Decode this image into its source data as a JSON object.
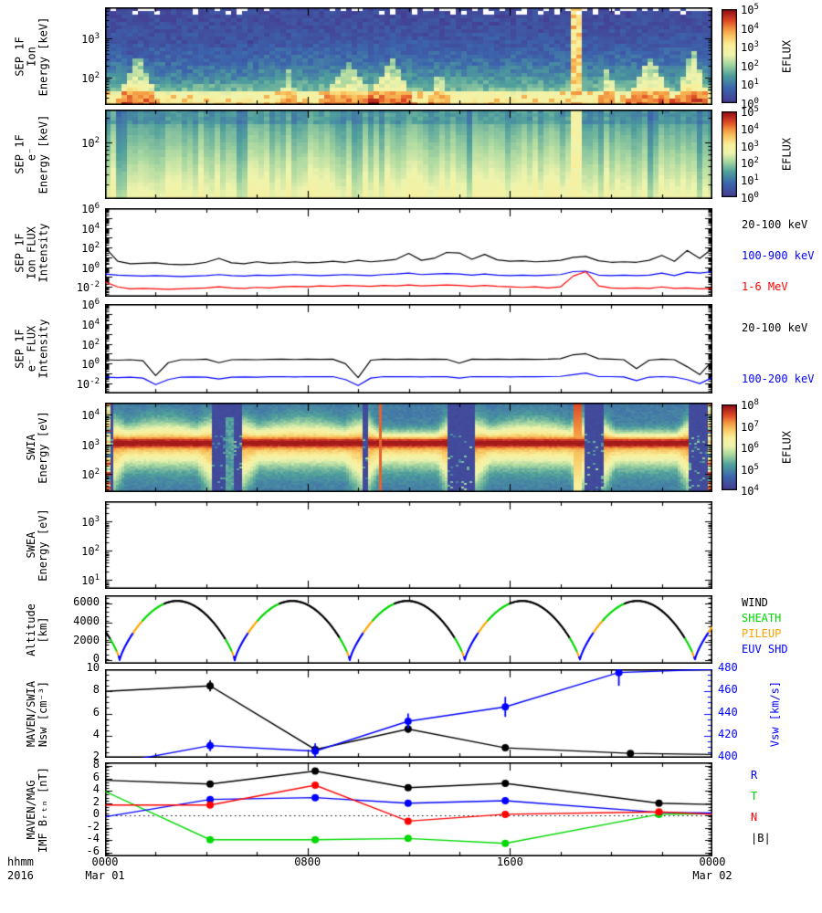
{
  "meta": {
    "background": "#ffffff",
    "foreground": "#000000"
  },
  "colors": {
    "black": "#000000",
    "blue": "#0000ff",
    "red": "#ff0000",
    "green": "#00d800",
    "orange": "#ffa500",
    "wind": "#000000",
    "sheath": "#00d800",
    "pileup": "#ffa500",
    "euv_shd": "#0000ff"
  },
  "colormap": [
    [
      0.0,
      "#46398f"
    ],
    [
      0.16,
      "#3c64ad"
    ],
    [
      0.3,
      "#4f9f9c"
    ],
    [
      0.42,
      "#a8d7a0"
    ],
    [
      0.52,
      "#eef4ad"
    ],
    [
      0.62,
      "#f9ef9c"
    ],
    [
      0.72,
      "#f8c55e"
    ],
    [
      0.8,
      "#f2903d"
    ],
    [
      0.88,
      "#df4727"
    ],
    [
      1.0,
      "#8f0b17"
    ]
  ],
  "xaxis": {
    "unit_label": "hhmm",
    "year_label": "2016",
    "ticks": [
      {
        "pos": 0.0,
        "time": "0000",
        "date": "Mar 01"
      },
      {
        "pos": 0.3333,
        "time": "0800",
        "date": ""
      },
      {
        "pos": 0.6667,
        "time": "1600",
        "date": ""
      },
      {
        "pos": 1.0,
        "time": "0000",
        "date": "Mar 02"
      }
    ],
    "minor_step_hours": 2,
    "major_step_hours": 8,
    "span_hours": 24
  },
  "chart_data": [
    {
      "id": "p1",
      "type": "heatmap",
      "title": "SEP 1F Ion energy spectrogram",
      "ylabel_lines": [
        "SEP 1F",
        "Ion",
        "Energy [keV]"
      ],
      "yrange_log": [
        1.3,
        3.8
      ],
      "ydecades": [
        2,
        3
      ],
      "colorbar": {
        "label": "EFLUX",
        "decades": [
          0,
          1,
          2,
          3,
          4,
          5
        ]
      },
      "heatmap": {
        "kind": "sep_ion",
        "cell": [
          6,
          4
        ],
        "base_top": 0.07,
        "base_gain": 0.4,
        "noise": 0.1,
        "bottom_boost": 0.16,
        "wedges": [
          [
            0.05,
            0.035,
            0.55,
            0.28
          ],
          [
            0.3,
            0.02,
            0.35,
            0.18
          ],
          [
            0.4,
            0.05,
            0.45,
            0.22
          ],
          [
            0.47,
            0.04,
            0.5,
            0.25
          ],
          [
            0.55,
            0.02,
            0.35,
            0.2
          ],
          [
            0.83,
            0.015,
            0.45,
            0.25
          ],
          [
            0.9,
            0.04,
            0.5,
            0.28
          ],
          [
            0.97,
            0.03,
            0.6,
            0.3
          ]
        ],
        "event_col": [
          0.779,
          0.008
        ],
        "dark_patch": [
          0.03,
          0.25,
          0.3,
          0.8
        ],
        "missing_row_prob": [
          0.33,
          0.1
        ],
        "missing_extra_right": 0.18
      }
    },
    {
      "id": "p2",
      "type": "heatmap",
      "title": "SEP 1F electron energy spectrogram",
      "ylabel_lines": [
        "SEP 1F",
        "e⁻",
        "Energy [keV]"
      ],
      "yrange_log": [
        1.3,
        2.4
      ],
      "ydecades": [
        2
      ],
      "colorbar": {
        "label": "EFLUX",
        "decades": [
          0,
          1,
          2,
          3,
          4,
          5
        ]
      },
      "heatmap": {
        "kind": "sep_e",
        "cell": [
          6,
          4
        ],
        "top_band": 0.15,
        "top_val": 0.28,
        "grad_lo": 0.33,
        "grad_hi": 0.56,
        "col_noise": 0.05,
        "noise": 0.02,
        "dark_stripes": [
          [
            0.023,
            0.01,
            0.55
          ],
          [
            0.221,
            0.008,
            0.5
          ],
          [
            0.414,
            0.009,
            0.5
          ],
          [
            0.597,
            0.008,
            0.45
          ],
          [
            0.82,
            0.006,
            0.35
          ],
          [
            0.902,
            0.009,
            0.5
          ],
          [
            0.982,
            0.006,
            0.35
          ]
        ],
        "bright_stripe": [
          0.779,
          0.009
        ]
      }
    },
    {
      "id": "p3",
      "type": "line-log",
      "title": "SEP 1F Ion flux intensity",
      "ylabel_lines": [
        "SEP 1F",
        "Ion FLUX",
        "Intensity"
      ],
      "yrange_log": [
        -3,
        6
      ],
      "ydecades": [
        -2,
        0,
        2,
        4,
        6
      ],
      "x_count": 49,
      "series": [
        {
          "name": "20-100 keV",
          "color": "black",
          "logy": [
            2.0,
            0.6,
            0.35,
            0.4,
            0.45,
            0.3,
            0.25,
            0.3,
            0.5,
            0.9,
            0.45,
            0.35,
            0.55,
            0.4,
            0.45,
            0.55,
            0.45,
            0.5,
            0.6,
            0.5,
            0.7,
            0.55,
            0.65,
            0.8,
            1.4,
            0.7,
            0.9,
            1.5,
            1.45,
            0.8,
            1.3,
            0.75,
            0.6,
            0.65,
            0.55,
            0.6,
            0.7,
            1.0,
            1.1,
            0.65,
            0.5,
            0.55,
            0.5,
            0.7,
            1.2,
            0.6,
            1.7,
            0.9,
            1.9
          ]
        },
        {
          "name": "100-900 keV",
          "color": "blue",
          "logy": [
            -0.7,
            -0.8,
            -0.85,
            -0.9,
            -0.85,
            -0.9,
            -0.95,
            -0.9,
            -0.85,
            -0.75,
            -0.85,
            -0.9,
            -0.8,
            -0.85,
            -0.8,
            -0.75,
            -0.8,
            -0.85,
            -0.8,
            -0.75,
            -0.8,
            -0.85,
            -0.75,
            -0.7,
            -0.6,
            -0.75,
            -0.7,
            -0.65,
            -0.7,
            -0.8,
            -0.7,
            -0.8,
            -0.85,
            -0.8,
            -0.85,
            -0.8,
            -0.75,
            -0.45,
            -0.4,
            -0.8,
            -0.85,
            -0.8,
            -0.85,
            -0.8,
            -0.6,
            -0.85,
            -0.5,
            -0.6,
            -0.45
          ]
        },
        {
          "name": "1-6 MeV",
          "color": "red",
          "logy": [
            -1.5,
            -2.0,
            -2.2,
            -2.15,
            -2.2,
            -2.25,
            -2.2,
            -2.15,
            -2.1,
            -2.0,
            -2.1,
            -2.15,
            -2.05,
            -2.1,
            -2.0,
            -1.95,
            -2.0,
            -1.9,
            -1.95,
            -1.85,
            -1.9,
            -1.95,
            -1.85,
            -1.9,
            -1.8,
            -1.9,
            -1.85,
            -1.8,
            -1.85,
            -1.95,
            -1.85,
            -1.95,
            -2.0,
            -2.05,
            -2.0,
            -2.1,
            -2.0,
            -0.9,
            -0.45,
            -1.9,
            -2.1,
            -2.15,
            -2.1,
            -2.15,
            -2.0,
            -2.15,
            -2.1,
            -2.2,
            -2.15
          ]
        }
      ],
      "legend": [
        {
          "label": "20-100 keV",
          "color": "black"
        },
        {
          "label": "100-900 keV",
          "color": "blue"
        },
        {
          "label": "1-6 MeV",
          "color": "red"
        }
      ]
    },
    {
      "id": "p4",
      "type": "line-log",
      "title": "SEP 1F electron flux intensity",
      "ylabel_lines": [
        "SEP 1F",
        "e⁻ FLUX",
        "Intensity"
      ],
      "yrange_log": [
        -3,
        6
      ],
      "ydecades": [
        -2,
        0,
        2,
        4,
        6
      ],
      "x_count": 49,
      "series": [
        {
          "name": "20-100 keV",
          "color": "black",
          "logy": [
            0.4,
            0.35,
            0.4,
            0.3,
            -1.2,
            0.1,
            0.4,
            0.4,
            0.45,
            0.1,
            0.4,
            0.42,
            0.4,
            0.43,
            0.45,
            0.42,
            0.45,
            0.44,
            0.45,
            0.0,
            -1.4,
            0.35,
            0.45,
            0.44,
            0.45,
            0.43,
            0.45,
            0.44,
            0.05,
            0.45,
            0.44,
            0.45,
            0.43,
            0.45,
            0.44,
            0.45,
            0.5,
            0.9,
            1.0,
            0.5,
            0.45,
            0.4,
            -0.5,
            0.35,
            0.45,
            0.4,
            -0.3,
            -1.1,
            0.3
          ]
        },
        {
          "name": "100-200 keV",
          "color": "blue",
          "logy": [
            -1.35,
            -1.4,
            -1.35,
            -1.45,
            -2.1,
            -1.6,
            -1.35,
            -1.33,
            -1.35,
            -1.55,
            -1.35,
            -1.33,
            -1.35,
            -1.32,
            -1.3,
            -1.33,
            -1.3,
            -1.32,
            -1.3,
            -1.6,
            -2.2,
            -1.45,
            -1.3,
            -1.32,
            -1.3,
            -1.33,
            -1.3,
            -1.32,
            -1.45,
            -1.3,
            -1.32,
            -1.3,
            -1.33,
            -1.3,
            -1.32,
            -1.3,
            -1.28,
            -1.1,
            -0.95,
            -1.3,
            -1.3,
            -1.33,
            -1.7,
            -1.35,
            -1.3,
            -1.35,
            -1.6,
            -2.0,
            -1.4
          ]
        }
      ],
      "legend": [
        {
          "label": "20-100 keV",
          "color": "black"
        },
        {
          "label": "100-200 keV",
          "color": "blue"
        }
      ]
    },
    {
      "id": "p5",
      "type": "heatmap",
      "title": "SWIA ion energy spectrogram",
      "ylabel_lines": [
        "SWIA",
        "Energy [eV]"
      ],
      "yrange_log": [
        1.4,
        4.4
      ],
      "ydecades": [
        2,
        3,
        4
      ],
      "colorbar": {
        "label": "EFLUX",
        "decades": [
          4,
          5,
          6,
          7,
          8
        ]
      },
      "heatmap": {
        "kind": "swia",
        "cell": [
          3,
          2
        ],
        "gap_val": 0.05,
        "block_base": 0.22,
        "center_yf": 0.45,
        "core_w": 0.05,
        "halo_up": 0.13,
        "halo_down": 0.26,
        "core_amp": 0.3,
        "halo_amp": 0.52,
        "edge_zone": 0.14,
        "edge_widen": 0.9,
        "blocks": [
          [
            0.01,
            0.173
          ],
          [
            0.223,
            0.421
          ],
          [
            0.433,
            0.564
          ],
          [
            0.609,
            0.789
          ],
          [
            0.82,
            0.962
          ]
        ],
        "spike_cols": [
          0.451
        ],
        "event_col": [
          0.779,
          0.007
        ],
        "teal_cols": [
          0.203
        ],
        "speckle_prob": 0.1,
        "edge_stripe_w": 0.008
      }
    },
    {
      "id": "p6",
      "type": "empty",
      "title": "SWEA electron energy spectrogram (no data)",
      "ylabel_lines": [
        "SWEA",
        "Energy [eV]"
      ],
      "yrange_log": [
        0.7,
        3.7
      ],
      "ydecades": [
        1,
        2,
        3
      ]
    },
    {
      "id": "p7",
      "type": "orbit",
      "title": "Spacecraft altitude with plasma region color code",
      "ylabel_lines": [
        "Altitude",
        "[km]"
      ],
      "yrange": [
        -350,
        6900
      ],
      "yticks": [
        0,
        2000,
        4000,
        6000
      ],
      "minor_step": 500,
      "orbit": {
        "peak_km": 6300,
        "first_min_h": 0.58,
        "period_h": 4.545,
        "power": 0.75,
        "ascend_regions": [
          [
            3000,
            "euv_shd"
          ],
          [
            4300,
            "pileup"
          ],
          [
            6050,
            "sheath"
          ],
          [
            100000,
            "wind"
          ]
        ],
        "descend_regions": [
          [
            700,
            "pileup"
          ],
          [
            2200,
            "sheath"
          ],
          [
            100000,
            "wind"
          ]
        ]
      },
      "legend": [
        {
          "label": "WIND",
          "color": "wind"
        },
        {
          "label": "SHEATH",
          "color": "sheath"
        },
        {
          "label": "PILEUP",
          "color": "pileup"
        },
        {
          "label": "EUV SHD",
          "color": "euv_shd"
        }
      ]
    },
    {
      "id": "p8",
      "type": "points",
      "title": "MAVEN/SWIA solar-wind density and speed",
      "ylabel_lines": [
        "MAVEN/SWIA",
        "Nsw [cm⁻³]"
      ],
      "yrange": [
        2,
        10
      ],
      "yticks": [
        2,
        4,
        6,
        8,
        10
      ],
      "minor_step": 0.5,
      "right_axis": {
        "label": "Vsw [km/s]",
        "range": [
          400,
          480
        ],
        "ticks": [
          400,
          420,
          440,
          460,
          480
        ],
        "minor_step": 5,
        "color": "blue"
      },
      "series": [
        {
          "name": "Nsw",
          "color": "black",
          "axis": "left",
          "points": [
            [
              0,
              8.0
            ],
            [
              0.173,
              8.5,
              0.5
            ],
            [
              0.346,
              2.75,
              0.35
            ],
            [
              0.499,
              4.6,
              0.35
            ],
            [
              0.659,
              2.9,
              0.25
            ],
            [
              0.865,
              2.4,
              0.25
            ],
            [
              1,
              2.3
            ]
          ],
          "markers": [
            1,
            2,
            3,
            4,
            5
          ]
        },
        {
          "name": "Vsw",
          "color": "blue",
          "axis": "right",
          "points": [
            [
              0.045,
              398
            ],
            [
              0.173,
              411,
              5
            ],
            [
              0.346,
              406,
              7
            ],
            [
              0.499,
              433,
              7
            ],
            [
              0.659,
              446,
              9
            ],
            [
              0.846,
              477,
              12
            ],
            [
              1,
              480
            ]
          ],
          "markers": [
            1,
            2,
            3,
            4,
            5
          ]
        }
      ]
    },
    {
      "id": "p9",
      "type": "points",
      "title": "MAVEN/MAG interplanetary magnetic field (RTN)",
      "ylabel_lines": [
        "MAVEN/MAG",
        "IMF Bᵣₜₙ [nT]"
      ],
      "yrange": [
        -6.6,
        8.6
      ],
      "yticks": [
        -6,
        -4,
        -2,
        0,
        2,
        4,
        6,
        8
      ],
      "minor_step": 0.5,
      "zero_line": true,
      "series": [
        {
          "name": "T",
          "color": "green",
          "axis": "left",
          "points": [
            [
              0,
              3.9
            ],
            [
              0.173,
              -3.9
            ],
            [
              0.346,
              -3.9
            ],
            [
              0.499,
              -3.7
            ],
            [
              0.659,
              -4.5
            ],
            [
              0.912,
              0.2
            ],
            [
              1,
              0.3
            ]
          ],
          "markers": [
            1,
            2,
            3,
            4,
            5
          ]
        },
        {
          "name": "R",
          "color": "blue",
          "axis": "left",
          "points": [
            [
              0,
              -0.2
            ],
            [
              0.173,
              2.6
            ],
            [
              0.346,
              2.9
            ],
            [
              0.499,
              2.0
            ],
            [
              0.659,
              2.4
            ],
            [
              0.912,
              0.5
            ],
            [
              1,
              0.4
            ]
          ],
          "markers": [
            1,
            2,
            3,
            4
          ]
        },
        {
          "name": "N",
          "color": "red",
          "axis": "left",
          "points": [
            [
              0,
              1.7
            ],
            [
              0.173,
              1.7
            ],
            [
              0.346,
              4.9
            ],
            [
              0.499,
              -0.9
            ],
            [
              0.659,
              0.2
            ],
            [
              0.912,
              0.6
            ],
            [
              1,
              0.2
            ]
          ],
          "markers": [
            1,
            2,
            3,
            4,
            5
          ]
        },
        {
          "name": "|B|",
          "color": "black",
          "axis": "left",
          "points": [
            [
              0,
              5.7
            ],
            [
              0.173,
              5.1
            ],
            [
              0.346,
              7.2
            ],
            [
              0.499,
              4.5
            ],
            [
              0.659,
              5.2
            ],
            [
              0.912,
              2.0
            ],
            [
              1,
              1.8
            ]
          ],
          "markers": [
            1,
            2,
            3,
            4,
            5
          ]
        }
      ],
      "legend": [
        {
          "label": "R",
          "color": "blue"
        },
        {
          "label": "T",
          "color": "green"
        },
        {
          "label": "N",
          "color": "red"
        },
        {
          "label": "|B|",
          "color": "black"
        }
      ]
    }
  ]
}
